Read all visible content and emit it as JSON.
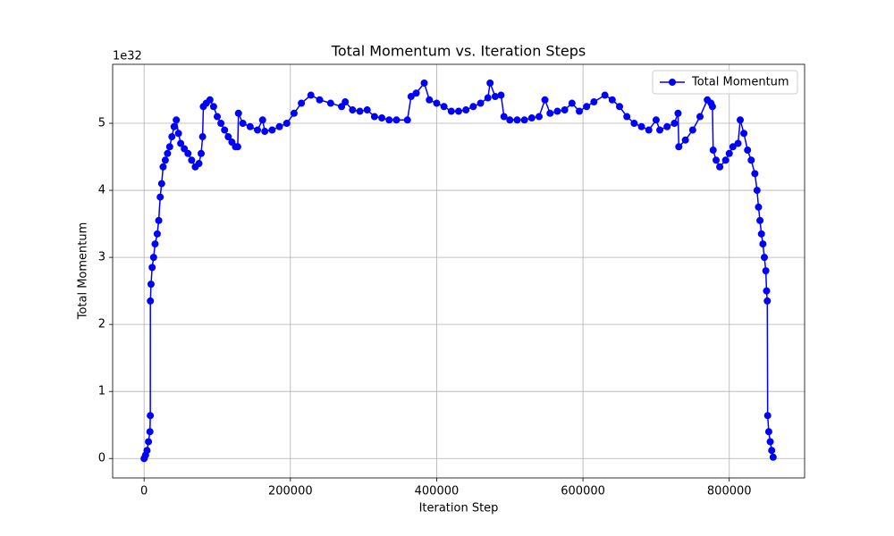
{
  "chart_data": {
    "type": "line",
    "title": "Total Momentum vs. Iteration Steps",
    "x_label": "Iteration Step",
    "y_label": "Total Momentum",
    "y_offset_label": "1e32",
    "x": [
      0,
      2000,
      4000,
      6000,
      8000,
      8500,
      8600,
      9500,
      11000,
      13000,
      15000,
      18000,
      20000,
      22000,
      24000,
      26000,
      29000,
      32000,
      35000,
      38000,
      41000,
      44000,
      47000,
      50000,
      55000,
      60000,
      65000,
      70000,
      75000,
      78000,
      80000,
      81000,
      85000,
      90000,
      95000,
      100000,
      105000,
      110000,
      115000,
      120000,
      125000,
      128000,
      129000,
      135000,
      145000,
      155000,
      162000,
      165000,
      175000,
      185000,
      195000,
      205000,
      215000,
      228000,
      240000,
      255000,
      270000,
      275000,
      285000,
      295000,
      305000,
      315000,
      325000,
      335000,
      345000,
      360000,
      365000,
      372000,
      383000,
      390000,
      400000,
      410000,
      420000,
      430000,
      440000,
      450000,
      460000,
      470000,
      473000,
      480000,
      488000,
      492000,
      500000,
      510000,
      520000,
      530000,
      540000,
      548000,
      555000,
      565000,
      575000,
      585000,
      595000,
      605000,
      615000,
      630000,
      640000,
      650000,
      660000,
      670000,
      680000,
      690000,
      700000,
      705000,
      715000,
      725000,
      730000,
      731000,
      740000,
      750000,
      760000,
      770000,
      775000,
      777000,
      778000,
      782000,
      787000,
      795000,
      800000,
      805000,
      812000,
      815000,
      820000,
      825000,
      830000,
      835000,
      838000,
      840000,
      842000,
      844000,
      846000,
      848000,
      850000,
      851000,
      852000,
      852500,
      854000,
      856000,
      858000,
      860000
    ],
    "series": [
      {
        "name": "Total Momentum",
        "color": "#0000ff",
        "marker": "o",
        "values": [
          0,
          0.05,
          0.12,
          0.25,
          0.4,
          0.64,
          2.35,
          2.6,
          2.85,
          3.0,
          3.2,
          3.35,
          3.55,
          3.9,
          4.1,
          4.35,
          4.45,
          4.55,
          4.65,
          4.8,
          4.95,
          5.05,
          4.85,
          4.7,
          4.62,
          4.55,
          4.45,
          4.35,
          4.4,
          4.55,
          4.8,
          5.25,
          5.3,
          5.35,
          5.25,
          5.1,
          5.0,
          4.9,
          4.8,
          4.72,
          4.65,
          4.65,
          5.15,
          5.0,
          4.95,
          4.9,
          5.05,
          4.88,
          4.9,
          4.95,
          5.0,
          5.15,
          5.3,
          5.42,
          5.35,
          5.3,
          5.25,
          5.32,
          5.2,
          5.18,
          5.2,
          5.1,
          5.08,
          5.05,
          5.05,
          5.05,
          5.4,
          5.45,
          5.6,
          5.35,
          5.3,
          5.25,
          5.18,
          5.18,
          5.2,
          5.25,
          5.3,
          5.38,
          5.6,
          5.4,
          5.42,
          5.1,
          5.05,
          5.05,
          5.05,
          5.08,
          5.1,
          5.35,
          5.15,
          5.18,
          5.2,
          5.3,
          5.18,
          5.25,
          5.32,
          5.42,
          5.35,
          5.25,
          5.1,
          5.0,
          4.95,
          4.9,
          5.05,
          4.9,
          4.95,
          5.0,
          5.15,
          4.65,
          4.75,
          4.9,
          5.1,
          5.35,
          5.3,
          5.25,
          4.6,
          4.45,
          4.35,
          4.45,
          4.55,
          4.65,
          4.7,
          5.05,
          4.85,
          4.6,
          4.45,
          4.25,
          4.0,
          3.75,
          3.55,
          3.35,
          3.2,
          3.0,
          2.8,
          2.5,
          2.35,
          0.64,
          0.4,
          0.25,
          0.12,
          0.02
        ]
      }
    ],
    "xlim": [
      -43000,
      903000
    ],
    "ylim": [
      -0.29,
      5.88
    ],
    "xticks": [
      0,
      200000,
      400000,
      600000,
      800000
    ],
    "yticks": [
      0,
      1,
      2,
      3,
      4,
      5
    ],
    "grid": true,
    "legend": "upper right"
  }
}
